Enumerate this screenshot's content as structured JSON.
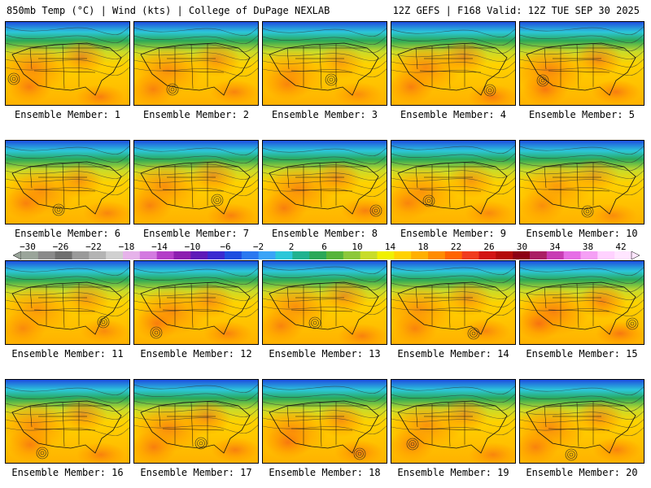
{
  "header": {
    "left": "850mb Temp (°C) | Wind (kts) | College of DuPage NEXLAB",
    "right": "12Z GEFS | F168 Valid: 12Z TUE SEP 30 2025"
  },
  "panels": [
    {
      "label": "Ensemble Member: 1",
      "warm": 0.85
    },
    {
      "label": "Ensemble Member: 2",
      "warm": 0.8
    },
    {
      "label": "Ensemble Member: 3",
      "warm": 0.65
    },
    {
      "label": "Ensemble Member: 4",
      "warm": 0.85
    },
    {
      "label": "Ensemble Member: 5",
      "warm": 0.9
    },
    {
      "label": "Ensemble Member: 6",
      "warm": 0.75
    },
    {
      "label": "Ensemble Member: 7",
      "warm": 0.8
    },
    {
      "label": "Ensemble Member: 8",
      "warm": 0.85
    },
    {
      "label": "Ensemble Member: 9",
      "warm": 0.7
    },
    {
      "label": "Ensemble Member: 10",
      "warm": 0.65
    },
    {
      "label": "Ensemble Member: 11",
      "warm": 0.7
    },
    {
      "label": "Ensemble Member: 12",
      "warm": 0.8
    },
    {
      "label": "Ensemble Member: 13",
      "warm": 0.8
    },
    {
      "label": "Ensemble Member: 14",
      "warm": 0.75
    },
    {
      "label": "Ensemble Member: 15",
      "warm": 0.95
    },
    {
      "label": "Ensemble Member: 16",
      "warm": 0.8
    },
    {
      "label": "Ensemble Member: 17",
      "warm": 0.85
    },
    {
      "label": "Ensemble Member: 18",
      "warm": 0.8
    },
    {
      "label": "Ensemble Member: 19",
      "warm": 0.75
    },
    {
      "label": "Ensemble Member: 20",
      "warm": 0.8
    }
  ],
  "colorbar": {
    "ticks": [
      "−30",
      "−26",
      "−22",
      "−18",
      "−14",
      "−10",
      "−6",
      "−2",
      "2",
      "6",
      "10",
      "14",
      "18",
      "22",
      "26",
      "30",
      "34",
      "38",
      "42"
    ],
    "colors": [
      "#9aa59a",
      "#8a8a8a",
      "#6f6f6f",
      "#9a9a9a",
      "#b4b4b4",
      "#d0d0d0",
      "#e6b3ea",
      "#d37ae0",
      "#b33ec8",
      "#8c1fb0",
      "#5e1ab8",
      "#3a2bd0",
      "#1e4ee0",
      "#2a78f0",
      "#3aa4f7",
      "#2cc7d9",
      "#20b28f",
      "#2aa858",
      "#55b43a",
      "#8cc83a",
      "#c8dc2a",
      "#f0f000",
      "#ffd200",
      "#ffb000",
      "#ff8c00",
      "#ff6400",
      "#f03c1e",
      "#d21414",
      "#b40a0a",
      "#8c0014",
      "#aa1e64",
      "#c83cb4",
      "#e66ee6",
      "#f5a0f5",
      "#ffd2ff",
      "#ffe6ff"
    ]
  }
}
